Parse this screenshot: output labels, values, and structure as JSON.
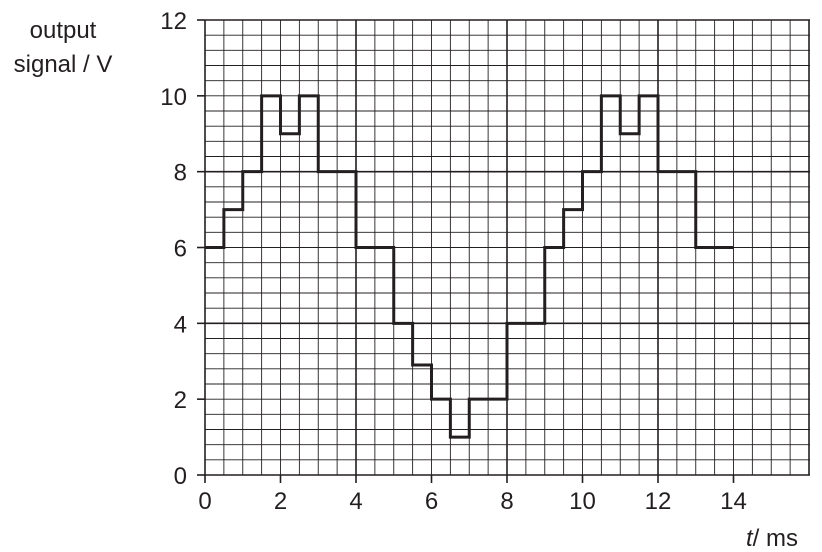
{
  "chart_data": {
    "type": "line",
    "step": true,
    "ylabel_lines": [
      "output",
      "signal / V"
    ],
    "xlabel_var": "t",
    "xlabel_unit": "/ ms",
    "xlim": [
      0,
      16
    ],
    "ylim": [
      0,
      12
    ],
    "x_ticks": [
      "0",
      "2",
      "4",
      "6",
      "8",
      "10",
      "12",
      "14"
    ],
    "y_ticks": [
      "0",
      "2",
      "4",
      "6",
      "8",
      "10",
      "12"
    ],
    "grid": true,
    "x": [
      0,
      0.5,
      1,
      1.5,
      2,
      2.5,
      3,
      3.5,
      4,
      4.5,
      5,
      5.5,
      6,
      6.5,
      7,
      7.5,
      8,
      8.5,
      9,
      9.5,
      10,
      10.5,
      11,
      11.5,
      12,
      12.5,
      13,
      13.5
    ],
    "values": [
      6,
      7,
      8,
      10,
      9,
      10,
      8,
      8,
      6,
      6,
      4,
      2.9,
      2,
      1,
      2,
      2,
      4,
      4,
      6,
      7,
      8,
      10,
      9,
      10,
      8,
      8,
      6,
      6
    ],
    "x_end": 14,
    "colors": {
      "line": "#231f20",
      "grid": "#231f20"
    }
  }
}
